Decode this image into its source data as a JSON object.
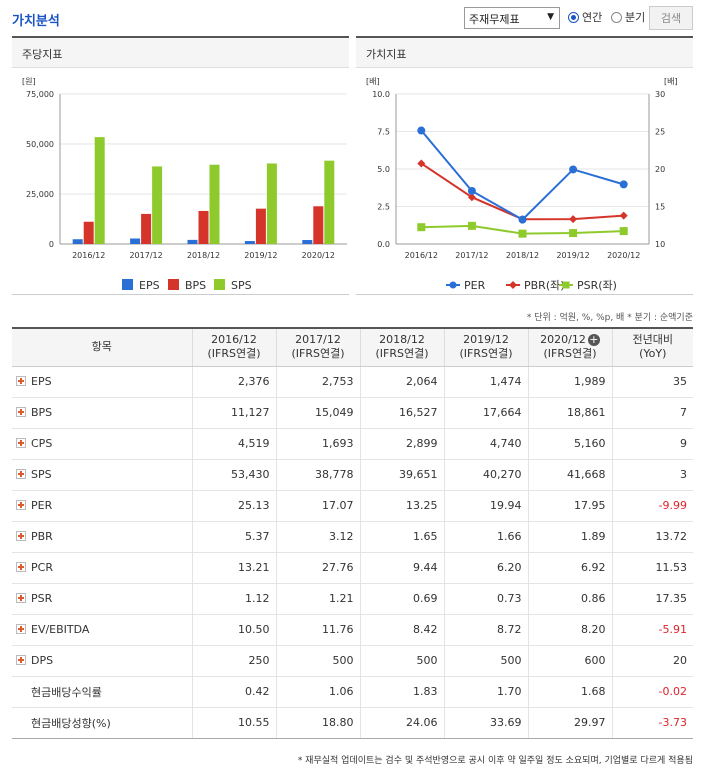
{
  "section_title": "가치분석",
  "filter": {
    "selected": "주재무제표",
    "radio_annual": "연간",
    "radio_quarter": "분기",
    "search": "검색"
  },
  "chart_left": {
    "title": "주당지표",
    "y_unit": "[원]",
    "y_ticks": [
      "75,000",
      "50,000",
      "25,000",
      "0"
    ],
    "colors": {
      "EPS": "#2a6fd6",
      "BPS": "#d5342a",
      "SPS": "#8fca2c"
    }
  },
  "chart_right": {
    "title": "가치지표",
    "left_unit": "[배]",
    "right_unit": "[배]",
    "left_ticks": [
      "10.0",
      "7.5",
      "5.0",
      "2.5",
      "0.0"
    ],
    "right_ticks": [
      "30",
      "25",
      "20",
      "15",
      "10"
    ],
    "colors": {
      "PER": "#2a6fd6",
      "PBR": "#d5342a",
      "PSR": "#8fca2c"
    }
  },
  "chart_data": [
    {
      "type": "bar",
      "categories": [
        "2016/12",
        "2017/12",
        "2018/12",
        "2019/12",
        "2020/12"
      ],
      "series": [
        {
          "name": "EPS",
          "values": [
            2376,
            2753,
            2064,
            1474,
            1989
          ]
        },
        {
          "name": "BPS",
          "values": [
            11127,
            15049,
            16527,
            17664,
            18861
          ]
        },
        {
          "name": "SPS",
          "values": [
            53430,
            38778,
            39651,
            40270,
            41668
          ]
        }
      ],
      "ylim": [
        0,
        75000
      ],
      "legend": "bottom"
    },
    {
      "type": "line",
      "categories": [
        "2016/12",
        "2017/12",
        "2018/12",
        "2019/12",
        "2020/12"
      ],
      "series": [
        {
          "name": "PER",
          "axis": "right",
          "values": [
            25.13,
            17.07,
            13.25,
            19.94,
            17.95
          ]
        },
        {
          "name": "PBR(좌)",
          "axis": "left",
          "values": [
            5.37,
            3.12,
            1.65,
            1.66,
            1.89
          ]
        },
        {
          "name": "PSR(좌)",
          "axis": "left",
          "values": [
            1.12,
            1.21,
            0.69,
            0.73,
            0.86
          ]
        }
      ],
      "ylim_left": [
        0,
        10
      ],
      "ylim_right": [
        10,
        30
      ],
      "legend": "bottom"
    }
  ],
  "unit_note": "* 단위 : 억원, %, %p, 배   * 분기 : 순액기준",
  "table": {
    "header_item": "항목",
    "columns": [
      {
        "year": "2016/12",
        "basis": "(IFRS연결)"
      },
      {
        "year": "2017/12",
        "basis": "(IFRS연결)"
      },
      {
        "year": "2018/12",
        "basis": "(IFRS연결)"
      },
      {
        "year": "2019/12",
        "basis": "(IFRS연결)"
      },
      {
        "year": "2020/12",
        "basis": "(IFRS연결)"
      }
    ],
    "yoy_label": "전년대비",
    "yoy_sub": "(YoY)",
    "plus_glyph": "+",
    "rows": [
      {
        "name": "EPS",
        "expand": true,
        "values": [
          "2,376",
          "2,753",
          "2,064",
          "1,474",
          "1,989"
        ],
        "yoy": "35"
      },
      {
        "name": "BPS",
        "expand": true,
        "values": [
          "11,127",
          "15,049",
          "16,527",
          "17,664",
          "18,861"
        ],
        "yoy": "7"
      },
      {
        "name": "CPS",
        "expand": true,
        "values": [
          "4,519",
          "1,693",
          "2,899",
          "4,740",
          "5,160"
        ],
        "yoy": "9"
      },
      {
        "name": "SPS",
        "expand": true,
        "values": [
          "53,430",
          "38,778",
          "39,651",
          "40,270",
          "41,668"
        ],
        "yoy": "3"
      },
      {
        "name": "PER",
        "expand": true,
        "values": [
          "25.13",
          "17.07",
          "13.25",
          "19.94",
          "17.95"
        ],
        "yoy": "-9.99"
      },
      {
        "name": "PBR",
        "expand": true,
        "values": [
          "5.37",
          "3.12",
          "1.65",
          "1.66",
          "1.89"
        ],
        "yoy": "13.72"
      },
      {
        "name": "PCR",
        "expand": true,
        "values": [
          "13.21",
          "27.76",
          "9.44",
          "6.20",
          "6.92"
        ],
        "yoy": "11.53"
      },
      {
        "name": "PSR",
        "expand": true,
        "values": [
          "1.12",
          "1.21",
          "0.69",
          "0.73",
          "0.86"
        ],
        "yoy": "17.35"
      },
      {
        "name": "EV/EBITDA",
        "expand": true,
        "values": [
          "10.50",
          "11.76",
          "8.42",
          "8.72",
          "8.20"
        ],
        "yoy": "-5.91"
      },
      {
        "name": "DPS",
        "expand": true,
        "values": [
          "250",
          "500",
          "500",
          "500",
          "600"
        ],
        "yoy": "20"
      },
      {
        "name": "현금배당수익률",
        "expand": false,
        "values": [
          "0.42",
          "1.06",
          "1.83",
          "1.70",
          "1.68"
        ],
        "yoy": "-0.02"
      },
      {
        "name": "현금배당성향(%)",
        "expand": false,
        "values": [
          "10.55",
          "18.80",
          "24.06",
          "33.69",
          "29.97"
        ],
        "yoy": "-3.73"
      }
    ]
  },
  "footnote": "* 재무실적 업데이트는 검수 및 주석반영으로 공시 이후 약 일주일 정도 소요되며, 기업별로 다르게 적용됨"
}
